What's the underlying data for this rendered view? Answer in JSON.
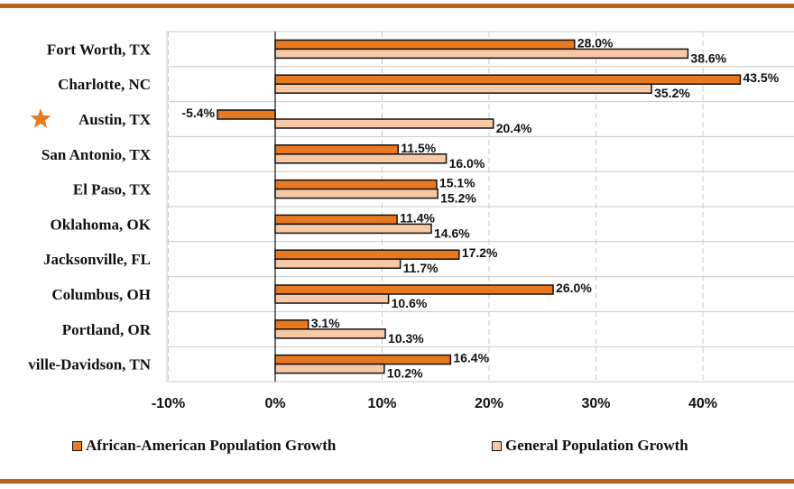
{
  "colors": {
    "frame_rule": "#b5651d",
    "aa_bar": "#e8791f",
    "gen_bar": "#f9c9a6",
    "bar_outline": "#111111",
    "grid": "#c8c8c8",
    "star": "#e8791f"
  },
  "chart_data": {
    "type": "bar",
    "orientation": "horizontal",
    "categories": [
      "Fort Worth, TX",
      "Charlotte, NC",
      "Austin, TX",
      "San Antonio, TX",
      "El Paso, TX",
      "Oklahoma, OK",
      "Jacksonville, FL",
      "Columbus, OH",
      "Portland, OR",
      "ville-Davidson, TN"
    ],
    "highlighted_category": "Austin, TX",
    "highlight_icon": "star-icon",
    "series": [
      {
        "name": "African-American Population Growth",
        "values": [
          28.0,
          43.5,
          -5.4,
          11.5,
          15.1,
          11.4,
          17.2,
          26.0,
          3.1,
          16.4
        ],
        "labels": [
          "28.0%",
          "43.5%",
          "-5.4%",
          "11.5%",
          "15.1%",
          "11.4%",
          "17.2%",
          "26.0%",
          "3.1%",
          "16.4%"
        ]
      },
      {
        "name": "General Population Growth",
        "values": [
          38.6,
          35.2,
          20.4,
          16.0,
          15.2,
          14.6,
          11.7,
          10.6,
          10.3,
          10.2
        ],
        "labels": [
          "38.6%",
          "35.2%",
          "20.4%",
          "16.0%",
          "15.2%",
          "14.6%",
          "11.7%",
          "10.6%",
          "10.3%",
          "10.2%"
        ]
      }
    ],
    "x_ticks": [
      -10,
      0,
      10,
      20,
      30,
      40
    ],
    "x_tick_labels": [
      "-10%",
      "0%",
      "10%",
      "20%",
      "30%",
      "40%"
    ],
    "xlim": [
      -10,
      48
    ],
    "grid": true,
    "legend_position": "bottom"
  },
  "legend": {
    "aa_label": "African-American Population Growth",
    "gen_label": "General Population Growth"
  }
}
